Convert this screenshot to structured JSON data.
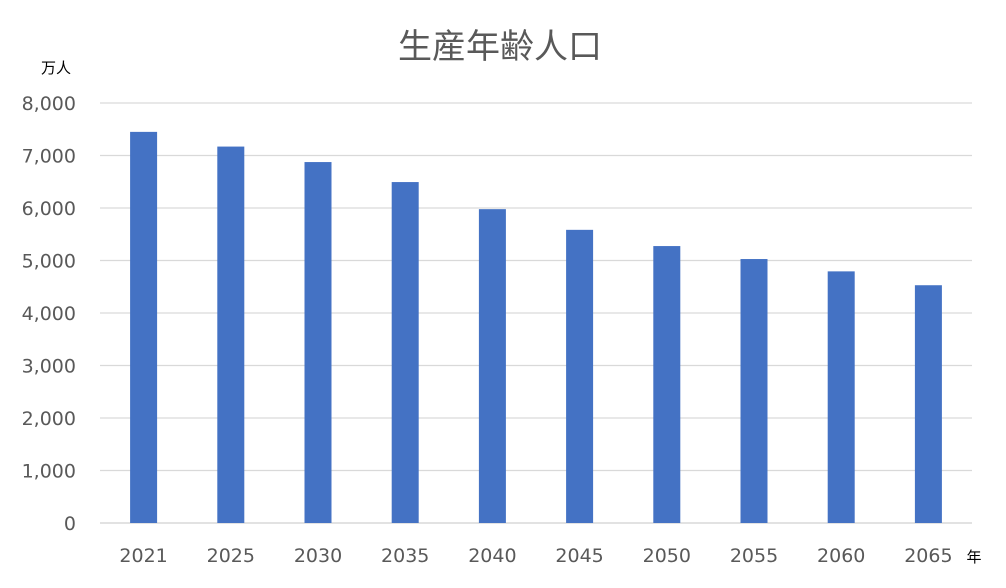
{
  "chart_data": {
    "type": "bar",
    "title": "生産年齢人口",
    "ylabel": "万人",
    "xlabel": "年",
    "categories": [
      "2021",
      "2025",
      "2030",
      "2035",
      "2040",
      "2045",
      "2050",
      "2055",
      "2060",
      "2065"
    ],
    "series": [
      {
        "values": [
          7450,
          7170,
          6875,
          6494,
          5978,
          5584,
          5275,
          5028,
          4793,
          4529
        ]
      }
    ],
    "ylim": [
      0,
      8000
    ],
    "yticks": [
      "0",
      "1,000",
      "2,000",
      "3,000",
      "4,000",
      "5,000",
      "6,000",
      "7,000",
      "8,000"
    ],
    "grid": true,
    "legend": "none",
    "colors": {
      "bar": "#4472C4",
      "grid": "#D9D9D9",
      "axis": "#D9D9D9",
      "text": "#595959"
    }
  }
}
